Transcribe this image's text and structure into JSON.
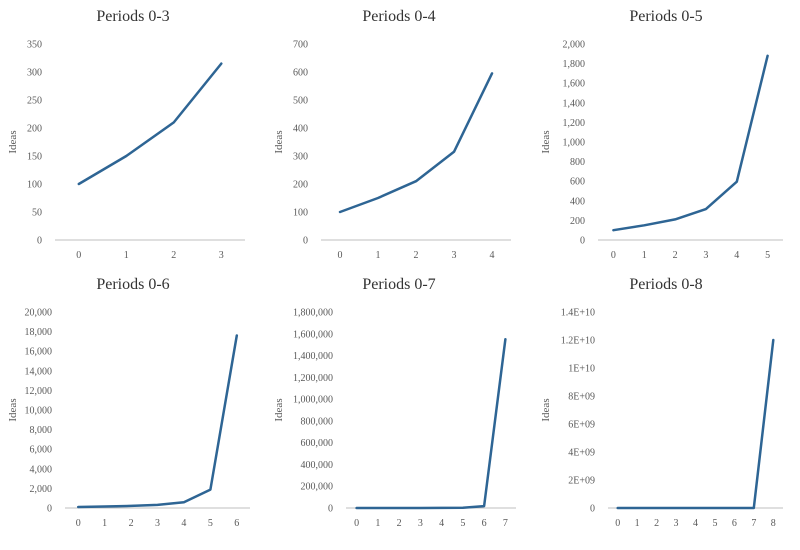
{
  "figure": {
    "line_color": "#2E6594",
    "axis_color": "#BFBFBF"
  },
  "chart_data": [
    {
      "type": "line",
      "title": "Periods 0-3",
      "ylabel": "Ideas",
      "xlabel": "",
      "x": [
        0,
        1,
        2,
        3
      ],
      "y": [
        100,
        150,
        210,
        315
      ],
      "ylim": [
        0,
        350
      ],
      "ytick_values": [
        0,
        50,
        100,
        150,
        200,
        250,
        300,
        350
      ],
      "yticks": [
        "0",
        "50",
        "100",
        "150",
        "200",
        "250",
        "300",
        "350"
      ],
      "xticks": [
        "0",
        "1",
        "2",
        "3"
      ],
      "grid": false,
      "legend": "none"
    },
    {
      "type": "line",
      "title": "Periods 0-4",
      "ylabel": "Ideas",
      "xlabel": "",
      "x": [
        0,
        1,
        2,
        3,
        4
      ],
      "y": [
        100,
        150,
        210,
        315,
        595
      ],
      "ylim": [
        0,
        700
      ],
      "ytick_values": [
        0,
        100,
        200,
        300,
        400,
        500,
        600,
        700
      ],
      "yticks": [
        "0",
        "100",
        "200",
        "300",
        "400",
        "500",
        "600",
        "700"
      ],
      "xticks": [
        "0",
        "1",
        "2",
        "3",
        "4"
      ],
      "grid": false,
      "legend": "none"
    },
    {
      "type": "line",
      "title": "Periods 0-5",
      "ylabel": "Ideas",
      "xlabel": "",
      "x": [
        0,
        1,
        2,
        3,
        4,
        5
      ],
      "y": [
        100,
        150,
        210,
        315,
        595,
        1880
      ],
      "ylim": [
        0,
        2000
      ],
      "ytick_values": [
        0,
        200,
        400,
        600,
        800,
        1000,
        1200,
        1400,
        1600,
        1800,
        2000
      ],
      "yticks": [
        "0",
        "200",
        "400",
        "600",
        "800",
        "1,000",
        "1,200",
        "1,400",
        "1,600",
        "1,800",
        "2,000"
      ],
      "xticks": [
        "0",
        "1",
        "2",
        "3",
        "4",
        "5"
      ],
      "grid": false,
      "legend": "none"
    },
    {
      "type": "line",
      "title": "Periods 0-6",
      "ylabel": "Ideas",
      "xlabel": "",
      "x": [
        0,
        1,
        2,
        3,
        4,
        5,
        6
      ],
      "y": [
        100,
        150,
        210,
        315,
        595,
        1880,
        17600
      ],
      "ylim": [
        0,
        20000
      ],
      "ytick_values": [
        0,
        2000,
        4000,
        6000,
        8000,
        10000,
        12000,
        14000,
        16000,
        18000,
        20000
      ],
      "yticks": [
        "0",
        "2,000",
        "4,000",
        "6,000",
        "8,000",
        "10,000",
        "12,000",
        "14,000",
        "16,000",
        "18,000",
        "20,000"
      ],
      "xticks": [
        "0",
        "1",
        "2",
        "3",
        "4",
        "5",
        "6"
      ],
      "grid": false,
      "legend": "none"
    },
    {
      "type": "line",
      "title": "Periods 0-7",
      "ylabel": "Ideas",
      "xlabel": "",
      "x": [
        0,
        1,
        2,
        3,
        4,
        5,
        6,
        7
      ],
      "y": [
        100,
        150,
        210,
        315,
        595,
        1880,
        17600,
        1550000
      ],
      "ylim": [
        0,
        1800000
      ],
      "ytick_values": [
        0,
        200000,
        400000,
        600000,
        800000,
        1000000,
        1200000,
        1400000,
        1600000,
        1800000
      ],
      "yticks": [
        "0",
        "200,000",
        "400,000",
        "600,000",
        "800,000",
        "1,000,000",
        "1,200,000",
        "1,400,000",
        "1,600,000",
        "1,800,000"
      ],
      "xticks": [
        "0",
        "1",
        "2",
        "3",
        "4",
        "5",
        "6",
        "7"
      ],
      "grid": false,
      "legend": "none"
    },
    {
      "type": "line",
      "title": "Periods 0-8",
      "ylabel": "Ideas",
      "xlabel": "",
      "x": [
        0,
        1,
        2,
        3,
        4,
        5,
        6,
        7,
        8
      ],
      "y": [
        100,
        150,
        210,
        315,
        595,
        1880,
        17600,
        1550000,
        12000000000
      ],
      "ylim": [
        0,
        14000000000
      ],
      "ytick_values": [
        0,
        2000000000,
        4000000000,
        6000000000,
        8000000000,
        10000000000,
        12000000000,
        14000000000
      ],
      "yticks": [
        "0",
        "2E+09",
        "4E+09",
        "6E+09",
        "8E+09",
        "1E+10",
        "1.2E+10",
        "1.4E+10"
      ],
      "xticks": [
        "0",
        "1",
        "2",
        "3",
        "4",
        "5",
        "6",
        "7",
        "8"
      ],
      "grid": false,
      "legend": "none"
    }
  ]
}
